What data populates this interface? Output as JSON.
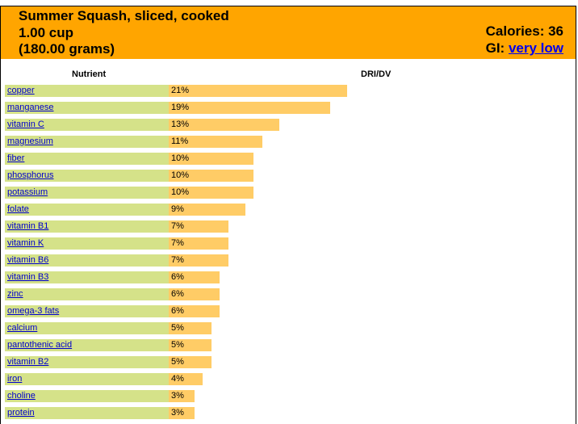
{
  "header": {
    "title_line1": "Summer Squash, sliced, cooked",
    "title_line2": "1.00 cup",
    "title_line3": "(180.00 grams)",
    "calories_label": "Calories: 36",
    "gi_label": "GI:",
    "gi_value": "very low"
  },
  "colors": {
    "header": "#ffa500",
    "name_cell": "#d5e289",
    "bar": "#ffcc66",
    "link": "#0000cc"
  },
  "chart_data": {
    "type": "bar",
    "orientation": "horizontal",
    "xlabel": "Nutrient",
    "ylabel": "DRI/DV",
    "unit": "%",
    "categories": [
      "copper",
      "manganese",
      "vitamin C",
      "magnesium",
      "fiber",
      "phosphorus",
      "potassium",
      "folate",
      "vitamin B1",
      "vitamin K",
      "vitamin B6",
      "vitamin B3",
      "zinc",
      "omega-3 fats",
      "calcium",
      "pantothenic acid",
      "vitamin B2",
      "iron",
      "choline",
      "protein"
    ],
    "values": [
      21,
      19,
      13,
      11,
      10,
      10,
      10,
      9,
      7,
      7,
      7,
      6,
      6,
      6,
      5,
      5,
      5,
      4,
      3,
      3
    ],
    "labels": [
      "21%",
      "19%",
      "13%",
      "11%",
      "10%",
      "10%",
      "10%",
      "9%",
      "7%",
      "7%",
      "7%",
      "6%",
      "6%",
      "6%",
      "5%",
      "5%",
      "5%",
      "4%",
      "3%",
      "3%"
    ]
  }
}
